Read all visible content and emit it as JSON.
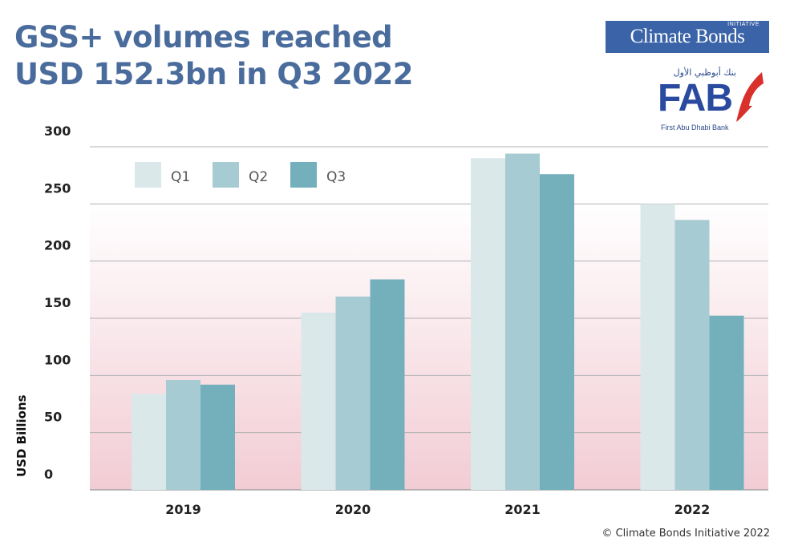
{
  "title_line1": "GSS+ volumes reached",
  "title_line2": "USD 152.3bn in Q3 2022",
  "logos": {
    "cbi": "Climate Bonds",
    "cbi_small": "INITIATIVE",
    "fab": "FAB",
    "fab_arabic": "بنك أبوظبي الأول",
    "fab_sub": "First Abu Dhabi Bank",
    "cbi_color": "#3a63a8",
    "fab_color": "#2a4aa0",
    "fab_accent": "#d9302c"
  },
  "credit": "© Climate Bonds Initiative 2022",
  "chart_data": {
    "type": "bar",
    "title": "GSS+ volumes reached USD 152.3bn in Q3 2022",
    "xlabel": "",
    "ylabel": "USD Billions",
    "categories": [
      "2019",
      "2020",
      "2021",
      "2022"
    ],
    "series": [
      {
        "name": "Q1",
        "values": [
          84,
          155,
          290,
          250
        ],
        "color": "#dbe8ea"
      },
      {
        "name": "Q2",
        "values": [
          96,
          169,
          294,
          236
        ],
        "color": "#a7cbd2"
      },
      {
        "name": "Q3",
        "values": [
          92,
          184,
          276,
          152.3
        ],
        "color": "#73b0bc"
      }
    ],
    "ylim": [
      0,
      300
    ],
    "yticks": [
      0,
      50,
      100,
      150,
      200,
      250,
      300
    ],
    "grid": true,
    "legend": "top-left",
    "background_gradient": [
      "#ffffff",
      "#f2ccd4"
    ]
  }
}
